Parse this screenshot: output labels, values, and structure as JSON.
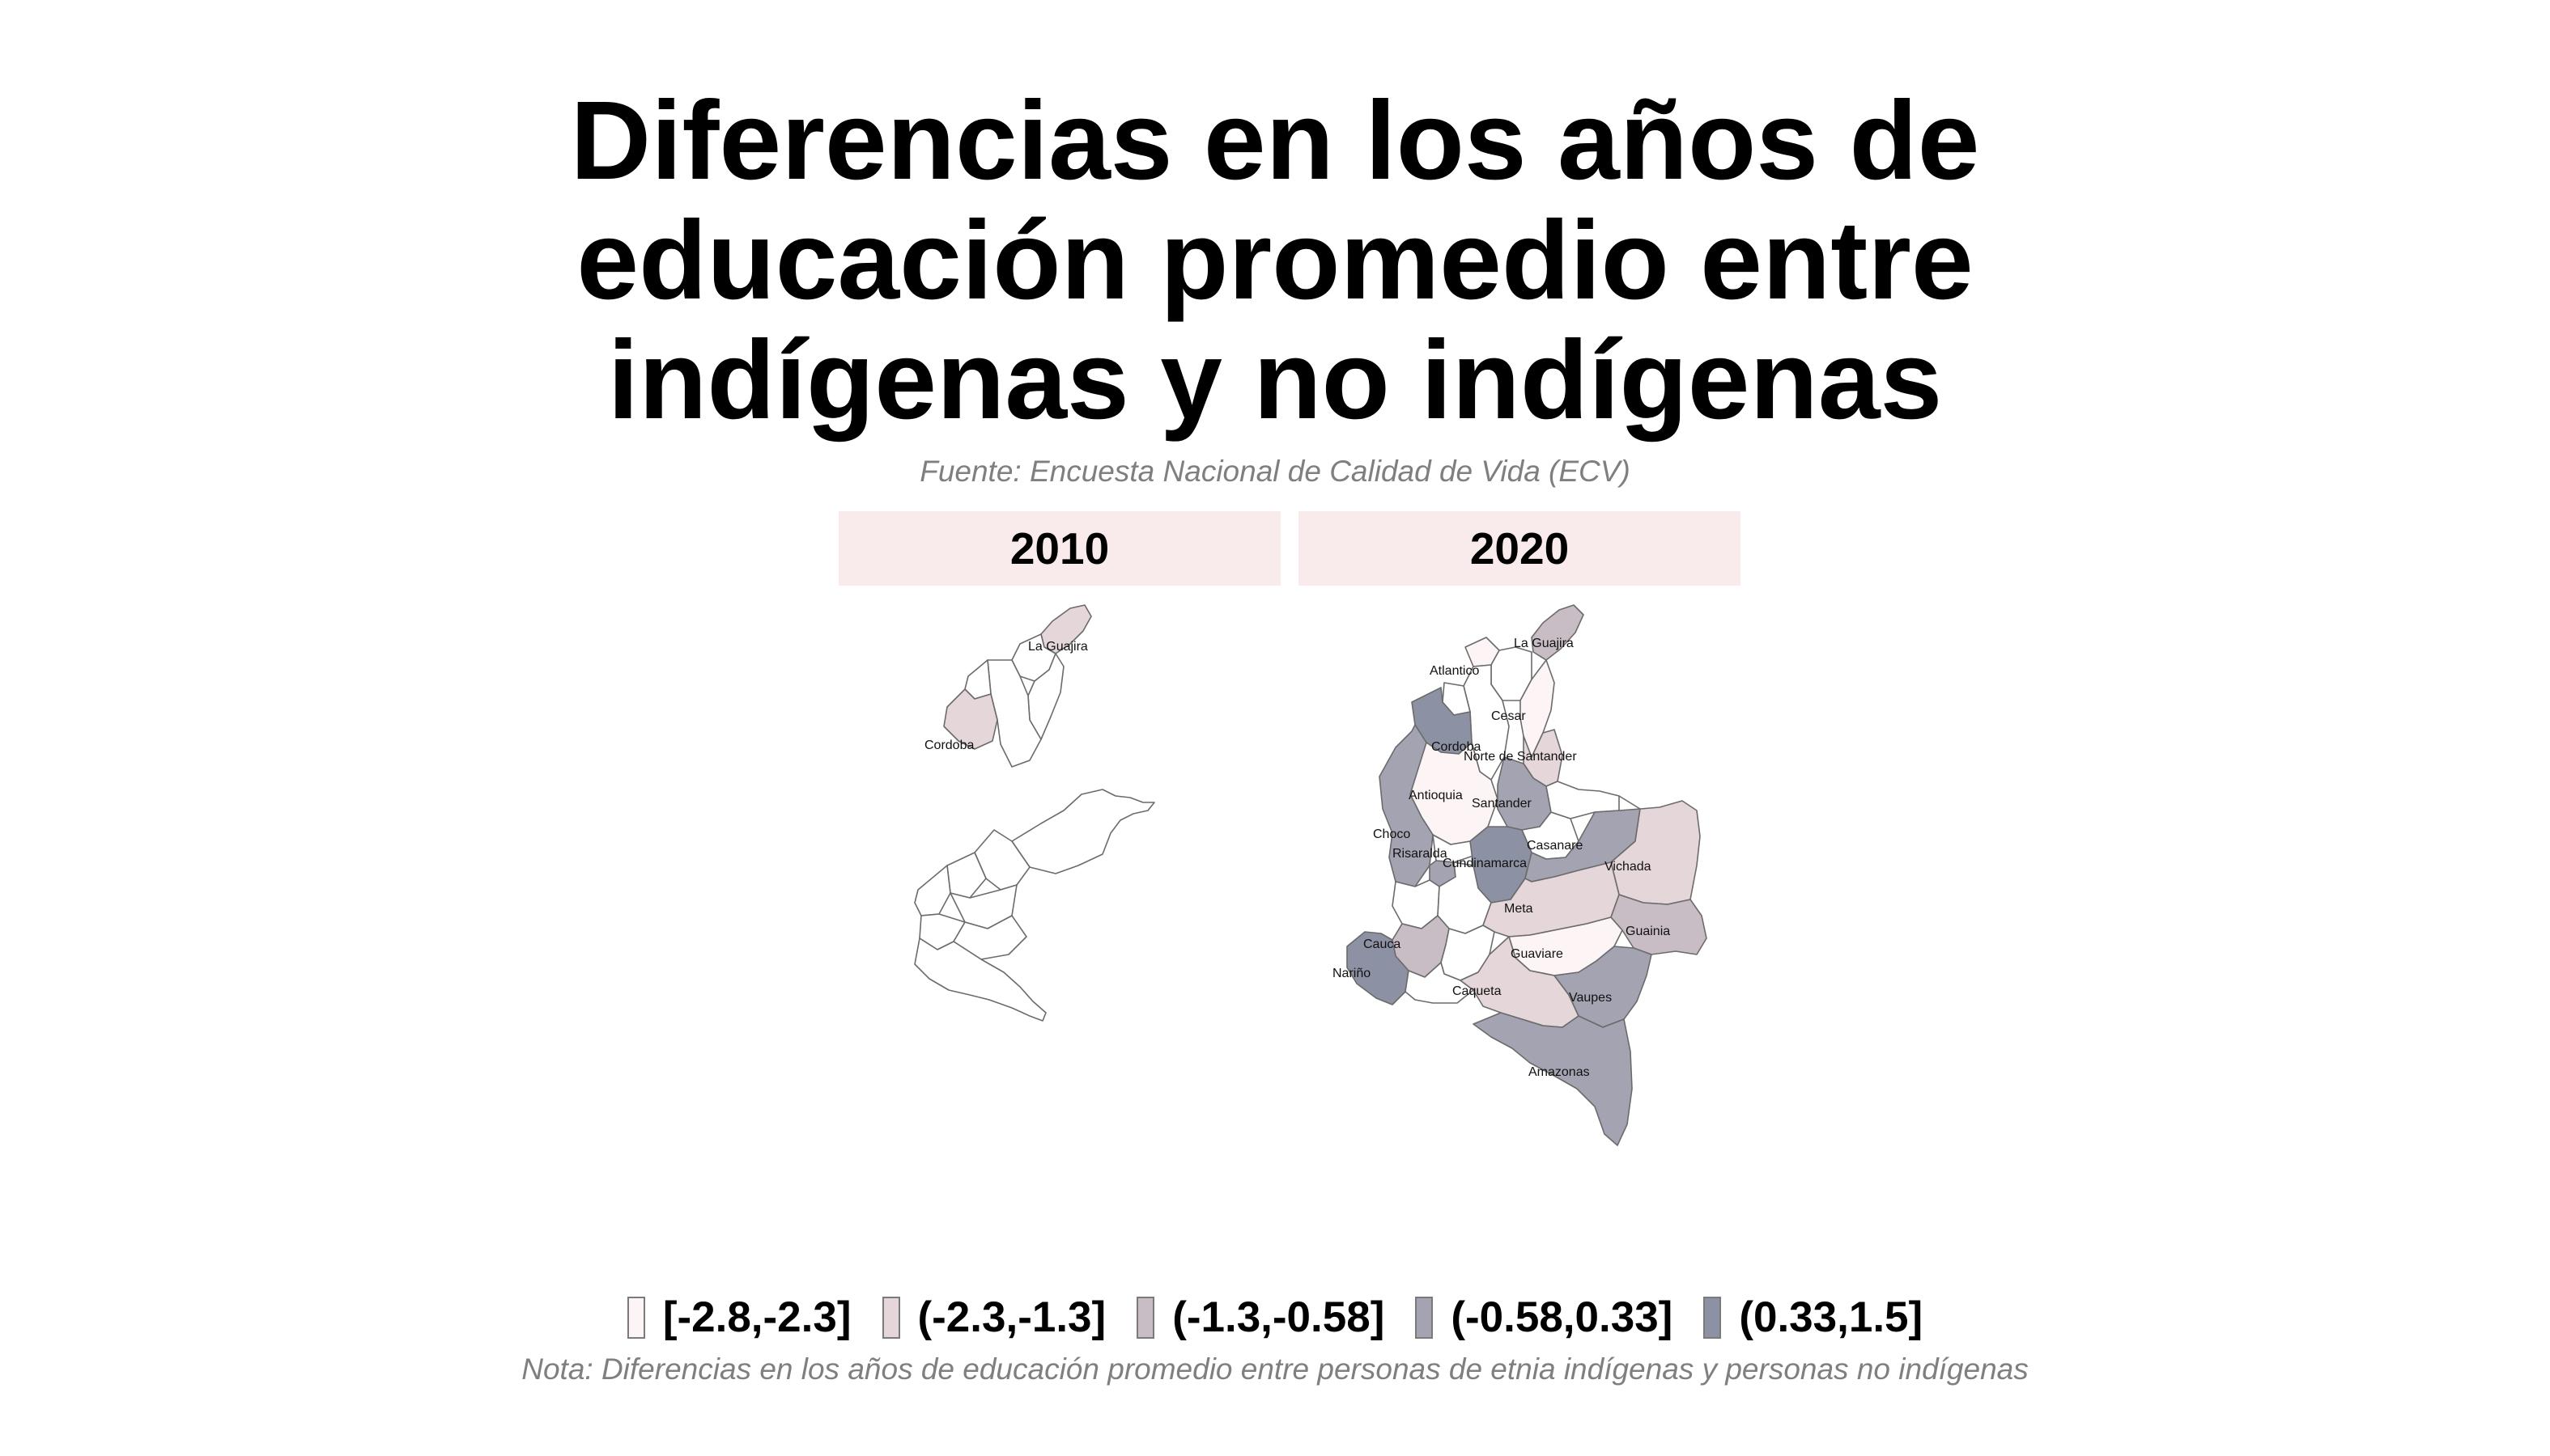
{
  "title_lines": [
    "Diferencias en los años de",
    "educación promedio entre",
    "indígenas y no indígenas"
  ],
  "source": "Fuente: Encuesta Nacional de Calidad de Vida (ECV)",
  "note": "Nota: Diferencias en los años de educación promedio entre personas de etnia indígenas y personas no indígenas",
  "colors": {
    "bin1": "#fdf4f5",
    "bin2": "#e5d6da",
    "bin3": "#c8bcc5",
    "bin4": "#a3a3b2",
    "bin5": "#8c91a3",
    "no_data": "#ffffff",
    "strip": "#f9ebec"
  },
  "legend": [
    {
      "label": "[-2.8,-2.3]",
      "color": "#fdf4f5"
    },
    {
      "label": "(-2.3,-1.3]",
      "color": "#e5d6da"
    },
    {
      "label": "(-1.3,-0.58]",
      "color": "#c8bcc5"
    },
    {
      "label": "(-0.58,0.33]",
      "color": "#a3a3b2"
    },
    {
      "label": "(0.33,1.5]",
      "color": "#8c91a3"
    }
  ],
  "panels": [
    {
      "label": "2010",
      "regions": [
        {
          "name": "La Guajira",
          "bin": 2
        },
        {
          "name": "Cordoba",
          "bin": 2
        }
      ]
    },
    {
      "label": "2020",
      "regions": [
        {
          "name": "La Guajira",
          "bin": 3
        },
        {
          "name": "Atlantico",
          "bin": 1
        },
        {
          "name": "Cesar",
          "bin": 1
        },
        {
          "name": "Cordoba",
          "bin": 5
        },
        {
          "name": "Norte de Santander",
          "bin": 2
        },
        {
          "name": "Antioquia",
          "bin": 1
        },
        {
          "name": "Santander",
          "bin": 4
        },
        {
          "name": "Choco",
          "bin": 4
        },
        {
          "name": "Risaralda",
          "bin": 4
        },
        {
          "name": "Cundinamarca",
          "bin": 5
        },
        {
          "name": "Casanare",
          "bin": 4
        },
        {
          "name": "Vichada",
          "bin": 2
        },
        {
          "name": "Meta",
          "bin": 2
        },
        {
          "name": "Guainia",
          "bin": 3
        },
        {
          "name": "Cauca",
          "bin": 3
        },
        {
          "name": "Nariño",
          "bin": 5
        },
        {
          "name": "Guaviare",
          "bin": 1
        },
        {
          "name": "Caqueta",
          "bin": 2
        },
        {
          "name": "Vaupes",
          "bin": 4
        },
        {
          "name": "Amazonas",
          "bin": 4
        }
      ]
    }
  ]
}
